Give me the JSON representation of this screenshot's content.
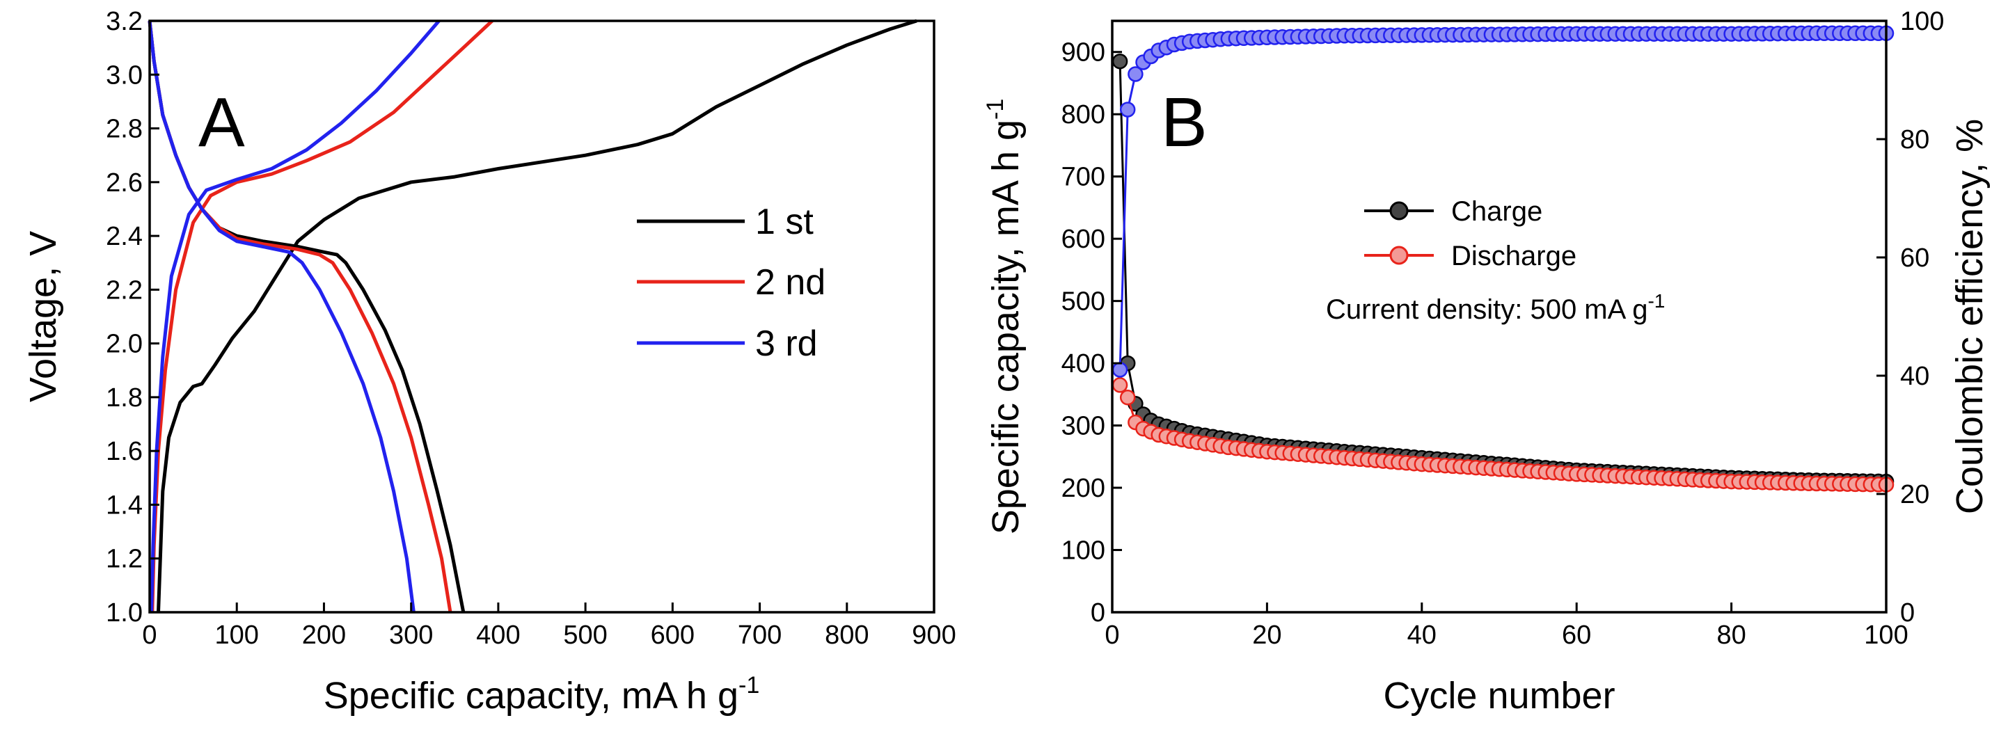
{
  "chart_data": [
    {
      "panel": "A",
      "type": "line",
      "xlabel": "Specific capacity, mA h g",
      "xlabel_sup": "-1",
      "ylabel": "Voltage, V",
      "xlim": [
        0,
        900
      ],
      "ylim": [
        1.0,
        3.2
      ],
      "xticks": [
        "0",
        "100",
        "200",
        "300",
        "400",
        "500",
        "600",
        "700",
        "800",
        "900"
      ],
      "yticks": [
        "1.0",
        "1.2",
        "1.4",
        "1.6",
        "1.8",
        "2.0",
        "2.2",
        "2.4",
        "2.6",
        "2.8",
        "3.0",
        "3.2"
      ],
      "legend_position": "right",
      "series": [
        {
          "name": "1 st",
          "color": "#000000",
          "discharge": [
            [
              0,
              3.2
            ],
            [
              5,
              3.05
            ],
            [
              15,
              2.85
            ],
            [
              30,
              2.7
            ],
            [
              45,
              2.58
            ],
            [
              60,
              2.5
            ],
            [
              80,
              2.43
            ],
            [
              100,
              2.4
            ],
            [
              130,
              2.38
            ],
            [
              170,
              2.36
            ],
            [
              200,
              2.34
            ],
            [
              215,
              2.33
            ],
            [
              225,
              2.3
            ],
            [
              245,
              2.2
            ],
            [
              270,
              2.05
            ],
            [
              290,
              1.9
            ],
            [
              310,
              1.7
            ],
            [
              330,
              1.45
            ],
            [
              345,
              1.25
            ],
            [
              360,
              1.0
            ]
          ],
          "charge": [
            [
              10,
              1.0
            ],
            [
              15,
              1.45
            ],
            [
              22,
              1.65
            ],
            [
              35,
              1.78
            ],
            [
              50,
              1.84
            ],
            [
              60,
              1.85
            ],
            [
              75,
              1.92
            ],
            [
              95,
              2.02
            ],
            [
              120,
              2.12
            ],
            [
              145,
              2.25
            ],
            [
              170,
              2.38
            ],
            [
              200,
              2.46
            ],
            [
              240,
              2.54
            ],
            [
              300,
              2.6
            ],
            [
              350,
              2.62
            ],
            [
              400,
              2.65
            ],
            [
              500,
              2.7
            ],
            [
              560,
              2.74
            ],
            [
              600,
              2.78
            ],
            [
              650,
              2.88
            ],
            [
              700,
              2.96
            ],
            [
              750,
              3.04
            ],
            [
              800,
              3.11
            ],
            [
              850,
              3.17
            ],
            [
              880,
              3.2
            ]
          ]
        },
        {
          "name": "2 nd",
          "color": "#e8231a",
          "discharge": [
            [
              0,
              3.2
            ],
            [
              5,
              3.05
            ],
            [
              15,
              2.85
            ],
            [
              30,
              2.7
            ],
            [
              45,
              2.58
            ],
            [
              60,
              2.5
            ],
            [
              80,
              2.43
            ],
            [
              100,
              2.39
            ],
            [
              130,
              2.37
            ],
            [
              170,
              2.35
            ],
            [
              195,
              2.33
            ],
            [
              210,
              2.3
            ],
            [
              230,
              2.2
            ],
            [
              255,
              2.04
            ],
            [
              280,
              1.85
            ],
            [
              300,
              1.65
            ],
            [
              320,
              1.4
            ],
            [
              335,
              1.2
            ],
            [
              345,
              1.0
            ]
          ],
          "charge": [
            [
              3,
              1.0
            ],
            [
              5,
              1.25
            ],
            [
              10,
              1.6
            ],
            [
              18,
              1.9
            ],
            [
              30,
              2.2
            ],
            [
              50,
              2.45
            ],
            [
              70,
              2.55
            ],
            [
              100,
              2.6
            ],
            [
              140,
              2.63
            ],
            [
              180,
              2.68
            ],
            [
              230,
              2.75
            ],
            [
              280,
              2.86
            ],
            [
              320,
              2.98
            ],
            [
              360,
              3.1
            ],
            [
              393,
              3.2
            ]
          ]
        },
        {
          "name": "3 rd",
          "color": "#2222ee",
          "discharge": [
            [
              0,
              3.2
            ],
            [
              5,
              3.05
            ],
            [
              15,
              2.85
            ],
            [
              30,
              2.7
            ],
            [
              45,
              2.58
            ],
            [
              60,
              2.5
            ],
            [
              80,
              2.42
            ],
            [
              100,
              2.38
            ],
            [
              130,
              2.36
            ],
            [
              160,
              2.34
            ],
            [
              175,
              2.3
            ],
            [
              195,
              2.2
            ],
            [
              220,
              2.04
            ],
            [
              245,
              1.85
            ],
            [
              265,
              1.65
            ],
            [
              280,
              1.45
            ],
            [
              295,
              1.2
            ],
            [
              303,
              1.0
            ]
          ],
          "charge": [
            [
              2,
              1.0
            ],
            [
              4,
              1.25
            ],
            [
              8,
              1.6
            ],
            [
              15,
              1.95
            ],
            [
              25,
              2.25
            ],
            [
              45,
              2.48
            ],
            [
              65,
              2.57
            ],
            [
              100,
              2.61
            ],
            [
              140,
              2.65
            ],
            [
              180,
              2.72
            ],
            [
              220,
              2.82
            ],
            [
              260,
              2.94
            ],
            [
              300,
              3.08
            ],
            [
              332,
              3.2
            ]
          ]
        }
      ]
    },
    {
      "panel": "B",
      "type": "scatter",
      "xlabel": "Cycle number",
      "ylabel": "Specific capacity, mA h g",
      "ylabel_sup": "-1",
      "y2label": "Coulombic efficiency, %",
      "xlim": [
        0,
        100
      ],
      "ylim": [
        0,
        950
      ],
      "y2lim": [
        0,
        100
      ],
      "xticks": [
        "0",
        "20",
        "40",
        "60",
        "80",
        "100"
      ],
      "yticks": [
        "0",
        "100",
        "200",
        "300",
        "400",
        "500",
        "600",
        "700",
        "800",
        "900"
      ],
      "y2ticks": [
        "0",
        "20",
        "40",
        "60",
        "80",
        "100"
      ],
      "annotation": "Current density: 500 mA g",
      "annotation_sup": "-1",
      "legend_position": "upper-middle",
      "series": [
        {
          "name": "Charge",
          "axis": "left",
          "color": "#000000",
          "points": [
            [
              1,
              885
            ],
            [
              2,
              400
            ],
            [
              3,
              335
            ],
            [
              4,
              318
            ],
            [
              5,
              308
            ],
            [
              6,
              302
            ],
            [
              8,
              295
            ],
            [
              10,
              288
            ],
            [
              15,
              278
            ],
            [
              20,
              268
            ],
            [
              30,
              258
            ],
            [
              40,
              248
            ],
            [
              50,
              238
            ],
            [
              60,
              228
            ],
            [
              70,
              222
            ],
            [
              80,
              216
            ],
            [
              90,
              212
            ],
            [
              100,
              210
            ]
          ]
        },
        {
          "name": "Discharge",
          "axis": "left",
          "color": "#e8231a",
          "points": [
            [
              1,
              365
            ],
            [
              2,
              345
            ],
            [
              3,
              305
            ],
            [
              4,
              295
            ],
            [
              5,
              290
            ],
            [
              6,
              285
            ],
            [
              8,
              280
            ],
            [
              10,
              275
            ],
            [
              15,
              265
            ],
            [
              20,
              258
            ],
            [
              30,
              248
            ],
            [
              40,
              238
            ],
            [
              50,
              230
            ],
            [
              60,
              222
            ],
            [
              70,
              216
            ],
            [
              80,
              210
            ],
            [
              90,
              207
            ],
            [
              100,
              205
            ]
          ]
        },
        {
          "name": "Coulombic efficiency",
          "axis": "right",
          "color": "#2222ee",
          "points": [
            [
              1,
              41
            ],
            [
              2,
              85
            ],
            [
              3,
              91
            ],
            [
              4,
              93
            ],
            [
              5,
              94
            ],
            [
              6,
              95
            ],
            [
              8,
              96
            ],
            [
              10,
              96.5
            ],
            [
              15,
              97
            ],
            [
              20,
              97.2
            ],
            [
              30,
              97.5
            ],
            [
              40,
              97.6
            ],
            [
              50,
              97.7
            ],
            [
              60,
              97.8
            ],
            [
              70,
              97.8
            ],
            [
              80,
              97.8
            ],
            [
              90,
              97.9
            ],
            [
              100,
              97.9
            ]
          ]
        }
      ]
    }
  ],
  "legend_a": {
    "item1": "1 st",
    "item2": "2 nd",
    "item3": "3 rd"
  },
  "legend_b": {
    "item1": "Charge",
    "item2": "Discharge"
  },
  "panel_labels": {
    "a": "A",
    "b": "B"
  }
}
